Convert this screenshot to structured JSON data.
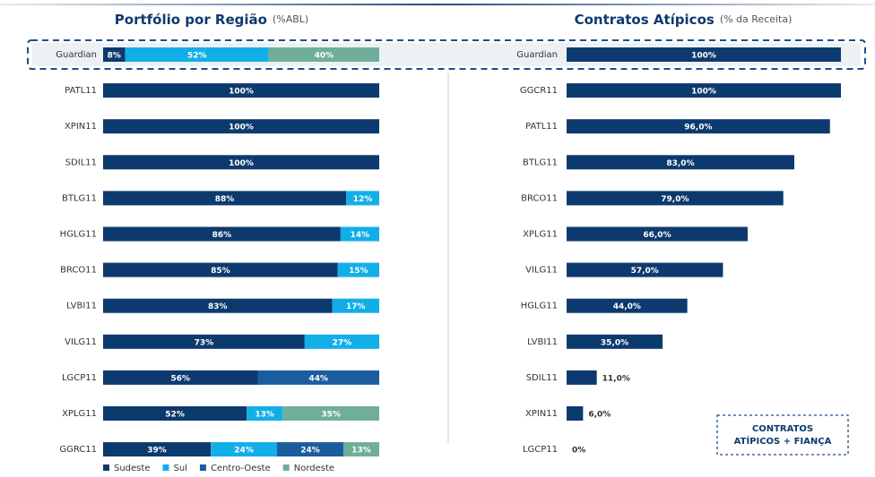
{
  "chart_data": [
    {
      "type": "stacked-bar-h",
      "title": "Portfólio por  Região",
      "subtitle": "(%ABL)",
      "categories": [
        "Guardian",
        "PATL11",
        "XPIN11",
        "SDIL11",
        "BTLG11",
        "HGLG11",
        "BRCO11",
        "LVBI11",
        "VILG11",
        "LGCP11",
        "XPLG11",
        "GGRC11"
      ],
      "xlim": [
        0,
        100
      ],
      "series": [
        {
          "name": "Sudeste",
          "color": "#0d3a6e",
          "values": [
            8,
            100,
            100,
            100,
            88,
            86,
            85,
            83,
            73,
            56,
            52,
            39
          ],
          "value_labels": [
            "8%",
            "100%",
            "100%",
            "100%",
            "88%",
            "86%",
            "85%",
            "83%",
            "73%",
            "56%",
            "52%",
            "39%"
          ]
        },
        {
          "name": "Sul",
          "color": "#12aee8",
          "values": [
            52,
            null,
            null,
            null,
            12,
            14,
            15,
            17,
            27,
            null,
            13,
            24
          ],
          "value_labels": [
            "52%",
            null,
            null,
            null,
            "12%",
            "14%",
            "15%",
            "17%",
            "27%",
            null,
            "13%",
            "24%"
          ]
        },
        {
          "name": "Centro-Oeste",
          "color": "#1a5c9e",
          "values": [
            null,
            null,
            null,
            null,
            null,
            null,
            null,
            null,
            null,
            44,
            null,
            24
          ],
          "value_labels": [
            null,
            null,
            null,
            null,
            null,
            null,
            null,
            null,
            null,
            "44%",
            null,
            "24%"
          ]
        },
        {
          "name": "Nordeste",
          "color": "#6fae9a",
          "values": [
            40,
            null,
            null,
            null,
            null,
            null,
            null,
            null,
            null,
            null,
            35,
            13
          ],
          "value_labels": [
            "40%",
            null,
            null,
            null,
            null,
            null,
            null,
            null,
            null,
            null,
            "35%",
            "13%"
          ]
        }
      ]
    },
    {
      "type": "bar-h",
      "title": "Contratos Atípicos",
      "subtitle": "(% da Receita)",
      "categories": [
        "Guardian",
        "GGCR11",
        "PATL11",
        "BTLG11",
        "BRCO11",
        "XPLG11",
        "VILG11",
        "HGLG11",
        "LVBI11",
        "SDIL11",
        "XPIN11",
        "LGCP11"
      ],
      "xlim": [
        0,
        100
      ],
      "color": "#0d3a6e",
      "values": [
        100,
        100,
        96,
        83,
        79,
        66,
        57,
        44,
        35,
        11,
        6,
        0
      ],
      "value_labels": [
        "100%",
        "100%",
        "96,0%",
        "83,0%",
        "79,0%",
        "66,0%",
        "57,0%",
        "44,0%",
        "35,0%",
        "11,0%",
        "6,0%",
        "0%"
      ],
      "annotation": [
        "CONTRATOS",
        "ATÍPICOS + FIANÇA"
      ]
    }
  ]
}
